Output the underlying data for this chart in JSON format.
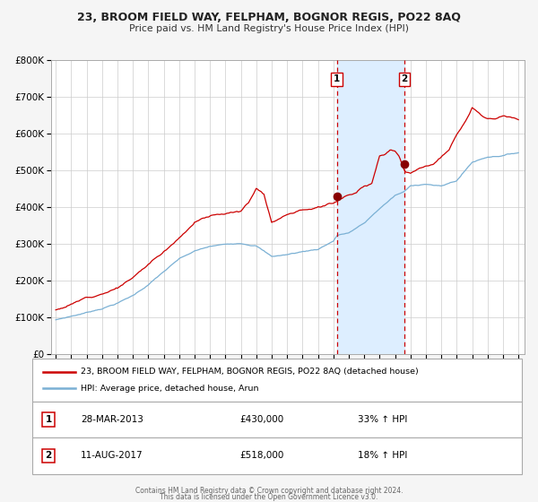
{
  "title": "23, BROOM FIELD WAY, FELPHAM, BOGNOR REGIS, PO22 8AQ",
  "subtitle": "Price paid vs. HM Land Registry's House Price Index (HPI)",
  "legend_line1": "23, BROOM FIELD WAY, FELPHAM, BOGNOR REGIS, PO22 8AQ (detached house)",
  "legend_line2": "HPI: Average price, detached house, Arun",
  "sale1_label": "1",
  "sale1_date": "28-MAR-2013",
  "sale1_price": "£430,000",
  "sale1_hpi": "33% ↑ HPI",
  "sale1_year": 2013.23,
  "sale1_value": 430000,
  "sale2_label": "2",
  "sale2_date": "11-AUG-2017",
  "sale2_price": "£518,000",
  "sale2_hpi": "18% ↑ HPI",
  "sale2_year": 2017.61,
  "sale2_value": 518000,
  "background_color": "#f5f5f5",
  "plot_bg_color": "#ffffff",
  "grid_color": "#cccccc",
  "shade_color": "#ddeeff",
  "line1_color": "#cc0000",
  "line2_color": "#7ab0d4",
  "dashed_line_color": "#cc0000",
  "marker_color": "#880000",
  "ylim": [
    0,
    800000
  ],
  "yticks": [
    0,
    100000,
    200000,
    300000,
    400000,
    500000,
    600000,
    700000,
    800000
  ],
  "ytick_labels": [
    "£0",
    "£100K",
    "£200K",
    "£300K",
    "£400K",
    "£500K",
    "£600K",
    "£700K",
    "£800K"
  ],
  "xlim_start": 1994.7,
  "xlim_end": 2025.4,
  "footer1": "Contains HM Land Registry data © Crown copyright and database right 2024.",
  "footer2": "This data is licensed under the Open Government Licence v3.0."
}
